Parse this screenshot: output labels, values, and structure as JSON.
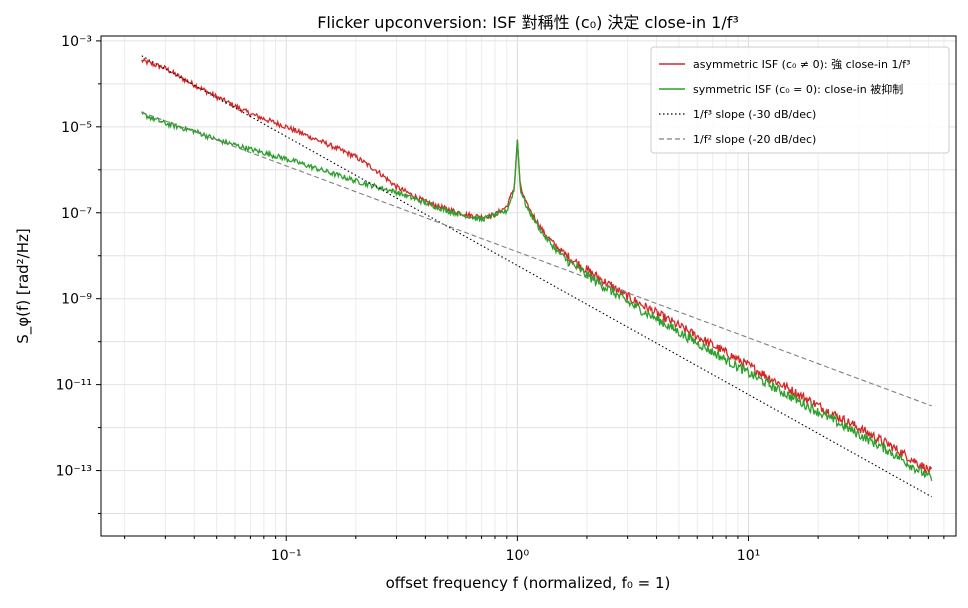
{
  "chart_data": {
    "type": "line",
    "title": "Flicker upconversion: ISF 對稱性 (c₀) 決定 close-in 1/f³",
    "xlabel": "offset frequency f (normalized, f₀ = 1)",
    "ylabel": "S_φ(f) [rad²/Hz]",
    "xscale": "log",
    "yscale": "log",
    "xlim": [
      0.0158,
      79
    ],
    "ylim": [
      3e-15,
      0.0013
    ],
    "x_tick_labels": [
      {
        "value": 0.1,
        "label": "10⁻¹"
      },
      {
        "value": 1,
        "label": "10⁰"
      },
      {
        "value": 10,
        "label": "10¹"
      }
    ],
    "y_tick_labels": [
      {
        "value": 0.001,
        "label": "10⁻³"
      },
      {
        "value": 1e-05,
        "label": "10⁻⁵"
      },
      {
        "value": 1e-07,
        "label": "10⁻⁷"
      },
      {
        "value": 1e-09,
        "label": "10⁻⁹"
      },
      {
        "value": 1e-11,
        "label": "10⁻¹¹"
      },
      {
        "value": 1e-13,
        "label": "10⁻¹³"
      }
    ],
    "grid": true,
    "legend_position": "top-right",
    "series": [
      {
        "name": "asymmetric ISF (c₀ ≠ 0): 強 close-in 1/f³",
        "color": "#d62728",
        "style": "solid",
        "points": [
          [
            0.0237,
            0.00035
          ],
          [
            0.03,
            0.00023
          ],
          [
            0.035,
            0.00014
          ],
          [
            0.05,
            5e-05
          ],
          [
            0.07,
            2e-05
          ],
          [
            0.1,
            1e-05
          ],
          [
            0.15,
            4e-06
          ],
          [
            0.2,
            2e-06
          ],
          [
            0.25,
            9e-07
          ],
          [
            0.3,
            4e-07
          ],
          [
            0.4,
            1.8e-07
          ],
          [
            0.5,
            1.2e-07
          ],
          [
            0.6,
            9e-08
          ],
          [
            0.7,
            8e-08
          ],
          [
            0.8,
            9e-08
          ],
          [
            0.9,
            1.4e-07
          ],
          [
            0.97,
            4e-07
          ],
          [
            1.0,
            5e-06
          ],
          [
            1.03,
            4e-07
          ],
          [
            1.1,
            1.5e-07
          ],
          [
            1.3,
            3.5e-08
          ],
          [
            1.5,
            1.5e-08
          ],
          [
            2.0,
            5e-09
          ],
          [
            3.0,
            1.2e-09
          ],
          [
            5.0,
            2.5e-10
          ],
          [
            10.0,
            3e-11
          ],
          [
            20.0,
            3.5e-12
          ],
          [
            40.0,
            4.5e-13
          ],
          [
            62.0,
            1e-13
          ]
        ]
      },
      {
        "name": "symmetric ISF (c₀ = 0): close-in 被抑制",
        "color": "#2ca02c",
        "style": "solid",
        "points": [
          [
            0.0237,
            2e-05
          ],
          [
            0.03,
            1.2e-05
          ],
          [
            0.04,
            8e-06
          ],
          [
            0.05,
            5e-06
          ],
          [
            0.07,
            3e-06
          ],
          [
            0.1,
            1.8e-06
          ],
          [
            0.15,
            9e-07
          ],
          [
            0.2,
            5.5e-07
          ],
          [
            0.3,
            3e-07
          ],
          [
            0.4,
            1.7e-07
          ],
          [
            0.5,
            1.1e-07
          ],
          [
            0.7,
            7e-08
          ],
          [
            0.9,
            1.1e-07
          ],
          [
            0.97,
            3.5e-07
          ],
          [
            1.0,
            5e-06
          ],
          [
            1.03,
            3.5e-07
          ],
          [
            1.1,
            1.3e-07
          ],
          [
            1.3,
            3e-08
          ],
          [
            1.5,
            1.2e-08
          ],
          [
            2.0,
            3.8e-09
          ],
          [
            3.0,
            9e-10
          ],
          [
            5.0,
            1.8e-10
          ],
          [
            10.0,
            2e-11
          ],
          [
            20.0,
            2.5e-12
          ],
          [
            40.0,
            3.2e-13
          ],
          [
            62.0,
            7e-14
          ]
        ]
      },
      {
        "name": "1/f³ slope (-30 dB/dec)",
        "color": "#000000",
        "style": "dotted",
        "points": [
          [
            0.0237,
            0.00045
          ],
          [
            62.0,
            2.45e-14
          ]
        ]
      },
      {
        "name": "1/f² slope (-20 dB/dec)",
        "color": "#808080",
        "style": "dashed",
        "points": [
          [
            0.0237,
            2.2e-05
          ],
          [
            62.0,
            3.2e-12
          ]
        ]
      }
    ]
  }
}
